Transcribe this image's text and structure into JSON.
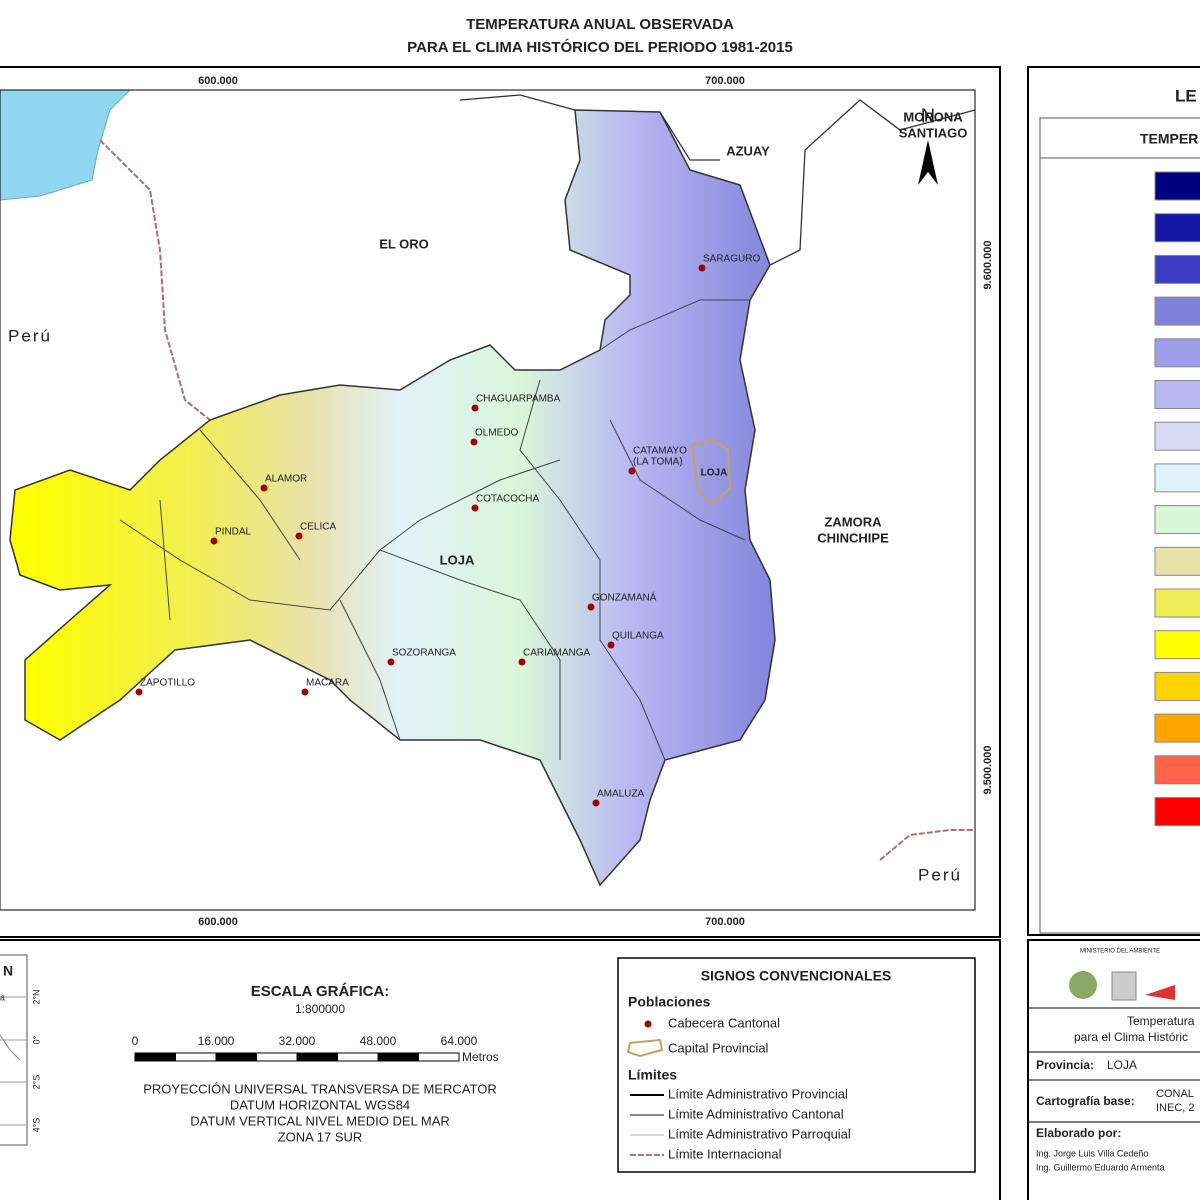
{
  "title": [
    "TEMPERATURA ANUAL OBSERVADA",
    "PARA EL CLIMA HISTÓRICO DEL PERIODO 1981-2015"
  ],
  "map": {
    "grid_top": [
      "600.000",
      "700.000"
    ],
    "grid_bottom": [
      "600.000",
      "700.000"
    ],
    "grid_right": [
      "9.600.000",
      "9.500.000"
    ],
    "north": "N",
    "province_label": "LOJA",
    "regions": [
      {
        "lines": [
          "EL ORO"
        ]
      },
      {
        "lines": [
          "AZUAY"
        ]
      },
      {
        "lines": [
          "MORONA",
          "SANTIAGO"
        ]
      },
      {
        "lines": [
          "ZAMORA",
          "CHINCHIPE"
        ]
      },
      {
        "lines": [
          "Perú"
        ]
      },
      {
        "lines": [
          "Perú"
        ]
      }
    ],
    "towns": [
      {
        "lines": [
          "SARAGURO"
        ]
      },
      {
        "lines": [
          "CHAGUARPAMBA"
        ]
      },
      {
        "lines": [
          "OLMEDO"
        ]
      },
      {
        "lines": [
          "CATAMAYO",
          "(LA TOMA)"
        ]
      },
      {
        "lines": [
          "ALAMOR"
        ]
      },
      {
        "lines": [
          "COTACOCHA"
        ]
      },
      {
        "lines": [
          "PINDAL"
        ]
      },
      {
        "lines": [
          "CELICA"
        ]
      },
      {
        "lines": [
          "GONZAMANÁ"
        ]
      },
      {
        "lines": [
          "QUILANGA"
        ]
      },
      {
        "lines": [
          "SOZORANGA"
        ]
      },
      {
        "lines": [
          "CARIAMANGA"
        ]
      },
      {
        "lines": [
          "ZAPOTILLO"
        ]
      },
      {
        "lines": [
          "MACARA"
        ]
      },
      {
        "lines": [
          "AMALUZA"
        ]
      }
    ],
    "capital": "LOJA"
  },
  "legend": {
    "title": "LE",
    "header": "TEMPER",
    "colors": [
      "#00007f",
      "#1616a6",
      "#3c3cc4",
      "#8282dc",
      "#9e9ee8",
      "#b9b9f2",
      "#dadaf6",
      "#e2f2fa",
      "#d9f6d9",
      "#e9e1aa",
      "#efef55",
      "#ffff00",
      "#ffd400",
      "#ffa500",
      "#ff6347",
      "#ff0000"
    ]
  },
  "inset": {
    "north": "N",
    "place": "a",
    "lat_labels": [
      "2°N",
      "0°",
      "2°S",
      "4°S"
    ]
  },
  "scale": {
    "title": "ESCALA GRÁFICA:",
    "ratio": "1:800000",
    "ticks": [
      "0",
      "16.000",
      "32.000",
      "48.000",
      "64.000"
    ],
    "unit": "Metros",
    "projection": [
      "PROYECCIÓN UNIVERSAL TRANSVERSA DE MERCATOR",
      "DATUM HORIZONTAL WGS84",
      "DATUM VERTICAL NIVEL MEDIO DEL MAR",
      "ZONA 17 SUR"
    ]
  },
  "signs": {
    "title": "SIGNOS CONVENCIONALES",
    "populations": {
      "heading": "Poblaciones",
      "items": [
        "Cabecera Cantonal",
        "Capital Provincial"
      ]
    },
    "limits": {
      "heading": "Límites",
      "items": [
        "Límite Administrativo Provincial",
        "Límite Administrativo Cantonal",
        "Límite Administrativo Parroquial",
        "Límite Internacional"
      ]
    }
  },
  "info": {
    "ministry": "MINISTERIO DEL AMBIENTE",
    "subtitle": [
      "Temperatura",
      "para el Clima Históric"
    ],
    "province_label": "Provincia:",
    "province": "LOJA",
    "base_label": "Cartografía base:",
    "base": [
      "CONAL",
      "INEC, 2"
    ],
    "made_by": "Elaborado por:",
    "authors": [
      "Ing. Jorge Luis Villa Cedeño",
      "Ing. Guillermo Eduardo Armenta"
    ]
  }
}
